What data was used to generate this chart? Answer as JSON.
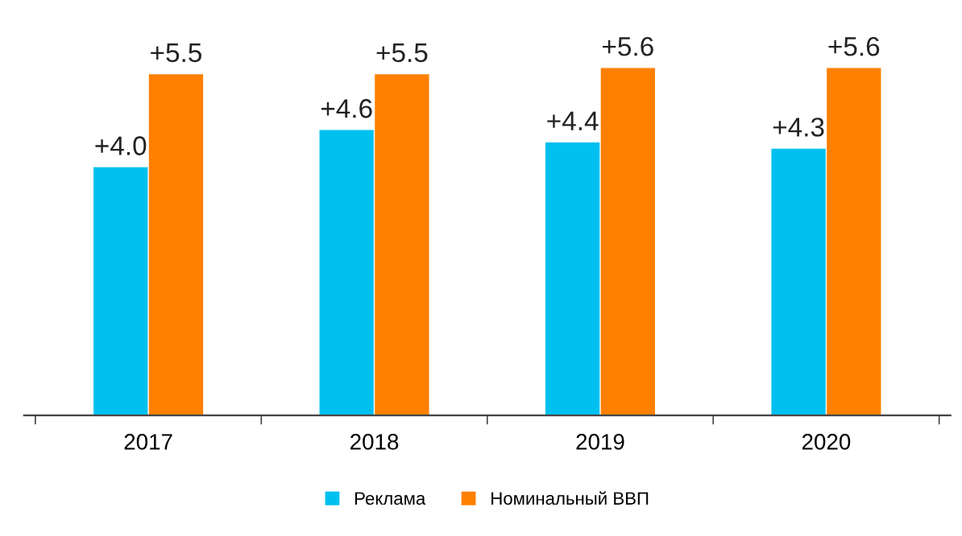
{
  "chart_data": {
    "type": "bar",
    "categories": [
      "2017",
      "2018",
      "2019",
      "2020"
    ],
    "series": [
      {
        "name": "Реклама",
        "color": "#00c0f0",
        "values": [
          4.0,
          4.6,
          4.4,
          4.3
        ],
        "value_labels": [
          "+4.0",
          "+4.6",
          "+4.4",
          "+4.3"
        ]
      },
      {
        "name": "Номинальный ВВП",
        "color": "#ff8000",
        "values": [
          5.5,
          5.5,
          5.6,
          5.6
        ],
        "value_labels": [
          "+5.5",
          "+5.5",
          "+5.6",
          "+5.6"
        ]
      }
    ],
    "legend": "bottom",
    "grid": false
  }
}
